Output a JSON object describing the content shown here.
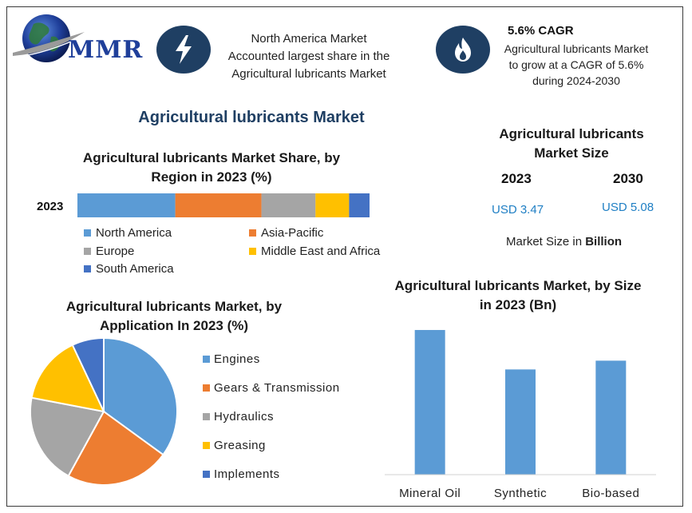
{
  "header": {
    "logo_text": "MMR",
    "highlight1": {
      "icon": "lightning-icon",
      "lines": [
        "North America Market",
        "Accounted largest share in the",
        "Agricultural lubricants Market"
      ]
    },
    "highlight2": {
      "icon": "flame-icon",
      "title": "5.6% CAGR",
      "lines": [
        "Agricultural lubricants Market",
        "to grow at a CAGR of 5.6%",
        "during 2024-2030"
      ]
    }
  },
  "main_title": "Agricultural lubricants Market",
  "market_size": {
    "title_line1": "Agricultural lubricants",
    "title_line2": "Market Size",
    "year1": "2023",
    "year2": "2030",
    "value1": "USD 3.47",
    "value2": "USD 5.08",
    "note_prefix": "Market Size in ",
    "note_bold": "Billion"
  },
  "colors": {
    "blue": "#5b9bd5",
    "orange": "#ed7d31",
    "gray": "#a5a5a5",
    "yellow": "#ffc000",
    "dark_blue": "#4472c4",
    "value_text": "#1f7fc4",
    "icon_bg": "#1f3f63"
  },
  "chart_data": [
    {
      "type": "bar",
      "orientation": "horizontal-stacked",
      "title_line1": "Agricultural lubricants Market Share, by",
      "title_line2": "Region in 2023 (%)",
      "categories": [
        "2023"
      ],
      "series": [
        {
          "name": "North America",
          "values": [
            33.5
          ],
          "color": "#5b9bd5"
        },
        {
          "name": "Asia-Pacific",
          "values": [
            29.5
          ],
          "color": "#ed7d31"
        },
        {
          "name": "Europe",
          "values": [
            18.5
          ],
          "color": "#a5a5a5"
        },
        {
          "name": "Middle East and Africa",
          "values": [
            11.5
          ],
          "color": "#ffc000"
        },
        {
          "name": "South America",
          "values": [
            7
          ],
          "color": "#4472c4"
        }
      ],
      "xlim": [
        0,
        100
      ],
      "legend_placement": "bottom"
    },
    {
      "type": "pie",
      "title_line1": "Agricultural lubricants Market, by",
      "title_line2": "Application In 2023 (%)",
      "labels": [
        "Engines",
        "Gears & Transmission",
        "Hydraulics",
        "Greasing",
        "Implements"
      ],
      "values": [
        35,
        23,
        20,
        15,
        7
      ],
      "colors": [
        "#5b9bd5",
        "#ed7d31",
        "#a5a5a5",
        "#ffc000",
        "#4472c4"
      ],
      "legend_placement": "right"
    },
    {
      "type": "bar",
      "title_line1": "Agricultural lubricants Market, by Size",
      "title_line2": "in 2023 (Bn)",
      "categories": [
        "Mineral Oil",
        "Synthetic",
        "Bio-based"
      ],
      "values": [
        1.65,
        1.2,
        1.3
      ],
      "ylim": [
        0,
        1.75
      ],
      "color": "#5b9bd5",
      "grid": false
    }
  ]
}
